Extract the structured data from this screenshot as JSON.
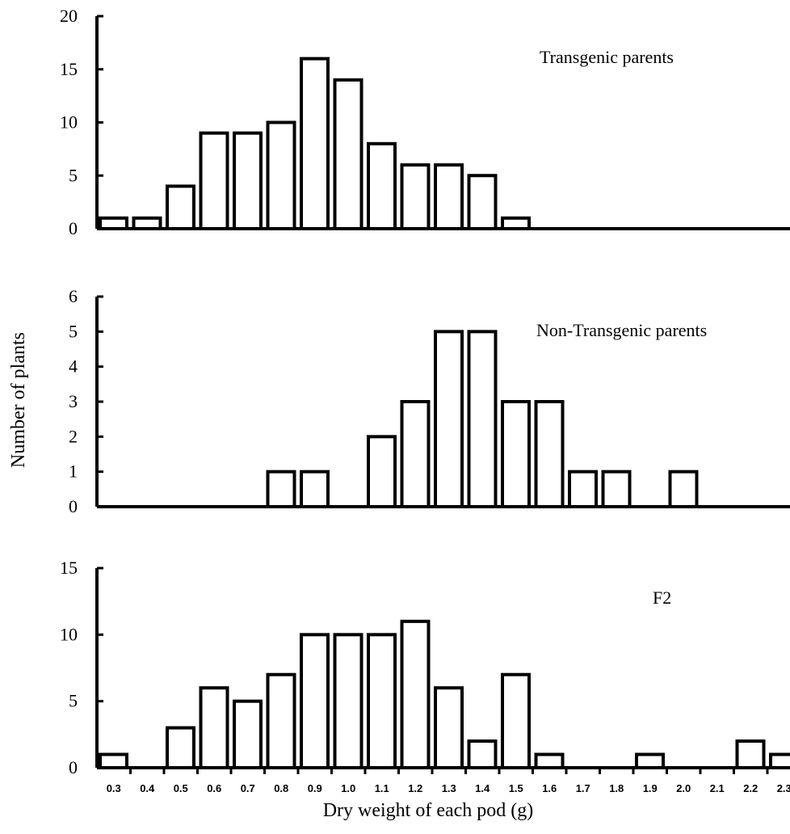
{
  "chart_data": {
    "type": "bar",
    "categories": [
      "0.3",
      "0.4",
      "0.5",
      "0.6",
      "0.7",
      "0.8",
      "0.9",
      "1.0",
      "1.1",
      "1.2",
      "1.3",
      "1.4",
      "1.5",
      "1.6",
      "1.7",
      "1.8",
      "1.9",
      "2.0",
      "2.1",
      "2.2",
      "2.3"
    ],
    "xlabel": "Dry weight of each pod (g)",
    "ylabel": "Number of plants",
    "panels": [
      {
        "title": "Transgenic parents",
        "values": [
          1,
          1,
          4,
          9,
          9,
          10,
          16,
          14,
          8,
          6,
          6,
          5,
          1,
          0,
          0,
          0,
          0,
          0,
          0,
          0,
          0
        ],
        "ylim": [
          0,
          20
        ],
        "yticks": [
          "0",
          "5",
          "10",
          "15",
          "20"
        ]
      },
      {
        "title": "Non-Transgenic parents",
        "values": [
          0,
          0,
          0,
          0,
          0,
          1,
          1,
          0,
          2,
          3,
          5,
          5,
          3,
          3,
          1,
          1,
          0,
          1,
          0,
          0,
          0
        ],
        "ylim": [
          0,
          6
        ],
        "yticks": [
          "0",
          "1",
          "2",
          "3",
          "4",
          "5",
          "6"
        ]
      },
      {
        "title": "F2",
        "values": [
          1,
          0,
          3,
          6,
          5,
          7,
          10,
          10,
          10,
          11,
          6,
          2,
          7,
          1,
          0,
          0,
          1,
          0,
          0,
          2,
          1
        ],
        "ylim": [
          0,
          15
        ],
        "yticks": [
          "0",
          "5",
          "10",
          "15"
        ]
      }
    ]
  }
}
